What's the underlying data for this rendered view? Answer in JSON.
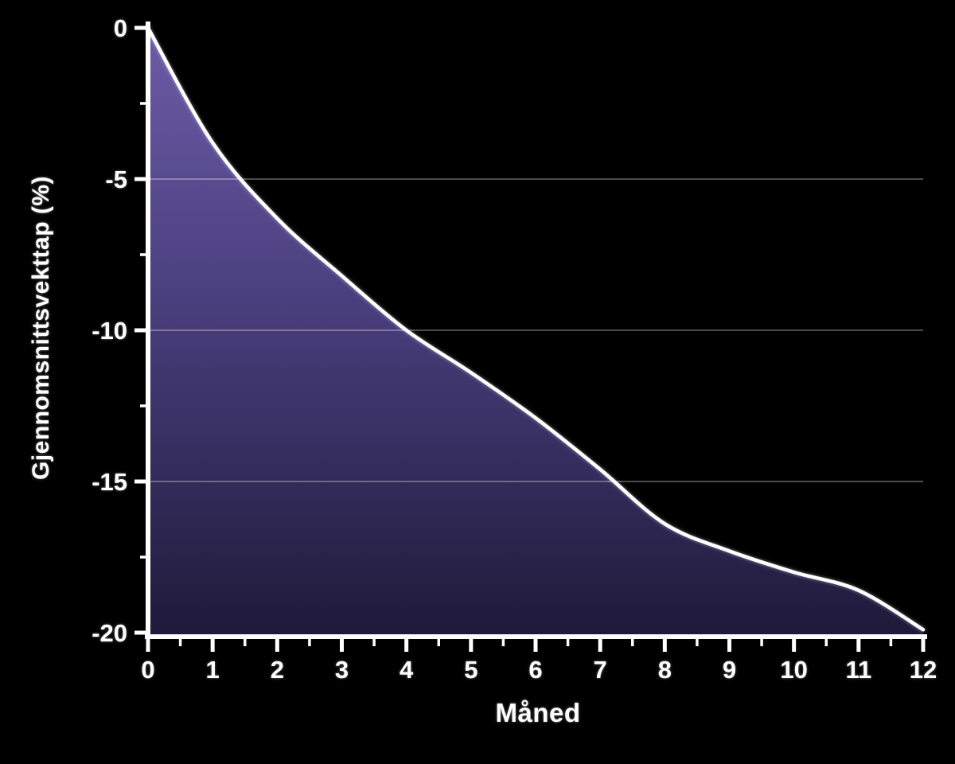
{
  "chart_data": {
    "type": "area",
    "title": "",
    "xlabel": "Måned",
    "ylabel": "Gjennomsnittsvekttap (%)",
    "x": [
      0,
      1,
      2,
      3,
      4,
      5,
      6,
      7,
      8,
      9,
      10,
      11,
      12
    ],
    "series": [
      {
        "name": "Gjennomsnittsvekttap",
        "values": [
          0,
          -3.8,
          -6.3,
          -8.2,
          -10.0,
          -11.4,
          -12.9,
          -14.6,
          -16.4,
          -17.3,
          -18.0,
          -18.6,
          -19.9
        ]
      }
    ],
    "xlim": [
      0,
      12
    ],
    "ylim": [
      -20,
      0
    ],
    "xticks": [
      0,
      1,
      2,
      3,
      4,
      5,
      6,
      7,
      8,
      9,
      10,
      11,
      12
    ],
    "xtick_labels": [
      "0",
      "1",
      "2",
      "3",
      "4",
      "5",
      "6",
      "7",
      "8",
      "9",
      "10",
      "11",
      "12"
    ],
    "yticks": [
      0,
      -5,
      -10,
      -15,
      -20
    ],
    "ytick_labels": [
      "0",
      "-5",
      "-10",
      "-15",
      "-20"
    ],
    "x_minor_tick_step": 0.5,
    "y_minor_ticks": [
      -2.5,
      -7.5,
      -12.5,
      -17.5
    ],
    "gridlines": [
      -5,
      -10,
      -15
    ],
    "grid": "horizontal",
    "legend": "none",
    "colors": {
      "background": "#000000",
      "area_top": "#6a5ca6",
      "area_mid": "#4a3f7e",
      "area_bottom": "#1f1a3a",
      "line": "#ffffff",
      "axis": "#ffffff",
      "grid": "#ffffff",
      "text": "#ffffff"
    },
    "grid_opacity": 0.4
  }
}
